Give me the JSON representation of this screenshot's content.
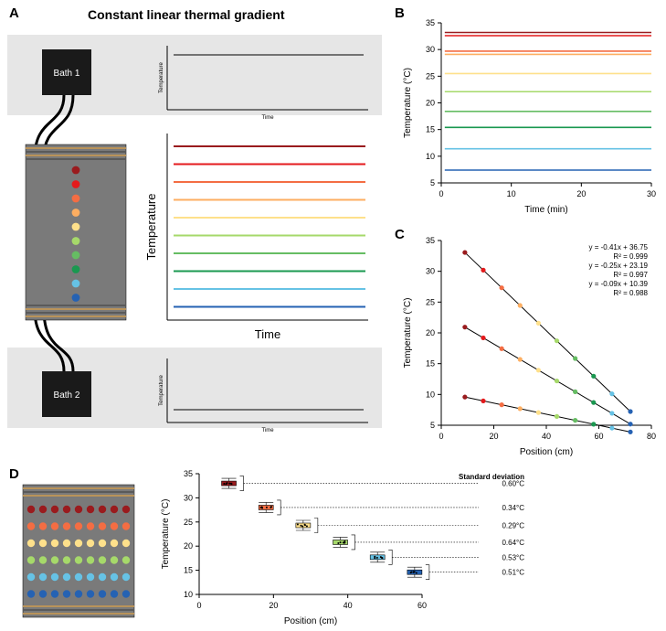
{
  "colors": {
    "rainbow": [
      "#9a1b1e",
      "#e41a1c",
      "#f46d43",
      "#fdae61",
      "#fee08b",
      "#a6d96a",
      "#66bd63",
      "#1a9850",
      "#66c2e5",
      "#2562b3"
    ],
    "six": [
      "#9a1b1e",
      "#f46d43",
      "#fee08b",
      "#a6d96a",
      "#66c2e5",
      "#2562b3"
    ],
    "bg_grey": "#e6e6e6",
    "plate_grey": "#7a7a7a",
    "plate_border": "#b9935a",
    "bath_black": "#1a1a1a",
    "text": "#000000",
    "axis": "#000000"
  },
  "title_A": "Constant linear thermal gradient",
  "labels": {
    "A": "A",
    "B": "B",
    "C": "C",
    "D": "D"
  },
  "panelB": {
    "xlabel": "Time (min)",
    "ylabel": "Temperature (°C)",
    "xlim": [
      0,
      30
    ],
    "xtick": [
      0,
      10,
      20,
      30
    ],
    "ylim": [
      5,
      35
    ],
    "ytick": [
      5,
      10,
      15,
      20,
      25,
      30,
      35
    ],
    "y_values": [
      33.2,
      32.6,
      29.7,
      29.1,
      25.5,
      22.1,
      18.4,
      15.4,
      11.4,
      7.4
    ],
    "label_fontsize": 9
  },
  "panelC": {
    "xlabel": "Position (cm)",
    "ylabel": "Temperature (°C)",
    "xlim": [
      0,
      80
    ],
    "xtick": [
      0,
      20,
      40,
      60,
      80
    ],
    "ylim": [
      5,
      35
    ],
    "ytick": [
      5,
      10,
      15,
      20,
      25,
      30,
      35
    ],
    "eq": [
      "y = -0.41x + 36.75",
      "R² = 0.999",
      "y = -0.25x + 23.19",
      "R² = 0.997",
      "y = -0.09x + 10.39",
      "R² = 0.988"
    ],
    "lines": [
      {
        "m": -0.41,
        "b": 36.75,
        "x0": 9,
        "x1": 72
      },
      {
        "m": -0.25,
        "b": 23.19,
        "x0": 9,
        "x1": 72
      },
      {
        "m": -0.09,
        "b": 10.39,
        "x0": 9,
        "x1": 72
      }
    ],
    "points_x": [
      9,
      16,
      23,
      30,
      37,
      44,
      51,
      58,
      65,
      72
    ],
    "label_fontsize": 9,
    "eq_fontsize": 8
  },
  "panelD": {
    "xlabel": "Position (cm)",
    "ylabel": "Temperature (°C)",
    "xlim": [
      0,
      60
    ],
    "xtick": [
      0,
      20,
      40,
      60
    ],
    "ylim": [
      10,
      35
    ],
    "ytick": [
      10,
      15,
      20,
      25,
      30,
      35
    ],
    "header": "Standard deviation",
    "rows": [
      {
        "pos": 8,
        "temp": 33.0,
        "sd": "0.60°C",
        "color": "#9a1b1e"
      },
      {
        "pos": 18,
        "temp": 28.0,
        "sd": "0.34°C",
        "color": "#f46d43"
      },
      {
        "pos": 28,
        "temp": 24.3,
        "sd": "0.29°C",
        "color": "#fee08b"
      },
      {
        "pos": 38,
        "temp": 20.8,
        "sd": "0.64°C",
        "color": "#a6d96a"
      },
      {
        "pos": 48,
        "temp": 17.7,
        "sd": "0.53°C",
        "color": "#66c2e5"
      },
      {
        "pos": 58,
        "temp": 14.6,
        "sd": "0.51°C",
        "color": "#2562b3"
      }
    ],
    "label_fontsize": 9
  },
  "bath1": "Bath 1",
  "bath2": "Bath 2",
  "small_axis_label": "Temperature",
  "small_x_label": "Time",
  "big_y_label": "Temperature",
  "big_x_label": "Time"
}
